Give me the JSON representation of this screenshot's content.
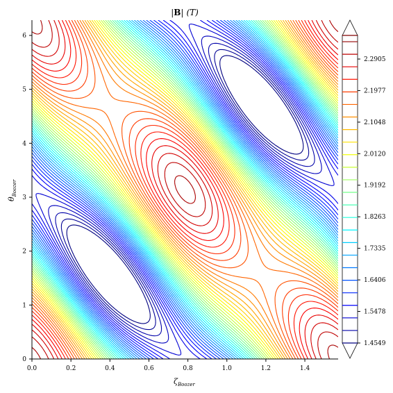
{
  "chart_data": {
    "type": "contour",
    "title": "|B| (T)",
    "title_parts": {
      "open": "|",
      "bold": "B",
      "close": "|",
      "unit": "(T)"
    },
    "xlabel": "ζ",
    "xlabel_sub": "Boozer",
    "ylabel": "θ",
    "ylabel_sub": "Boozer",
    "xlim": [
      0,
      1.5708
    ],
    "ylim": [
      0,
      6.2832
    ],
    "x_ticks": [
      "0.0",
      "0.2",
      "0.4",
      "0.6",
      "0.8",
      "1.0",
      "1.2",
      "1.4"
    ],
    "y_ticks": [
      "0",
      "1",
      "2",
      "3",
      "4",
      "5",
      "6"
    ],
    "field": {
      "mean": 1.87,
      "helical_amplitude": 0.4,
      "helical_m": 1,
      "helical_n": 4,
      "mirror_amplitude": 0.06
    },
    "colorbar": {
      "range": [
        1.4549,
        2.36
      ],
      "extend": "both",
      "tick_labels": [
        "1.4549",
        "1.5478",
        "1.6406",
        "1.7335",
        "1.8263",
        "1.9192",
        "2.0120",
        "2.1048",
        "2.1977",
        "2.2905"
      ],
      "tick_values": [
        1.4549,
        1.5478,
        1.6406,
        1.7335,
        1.8263,
        1.9192,
        2.012,
        2.1048,
        2.1977,
        2.2905
      ]
    },
    "colormap": "jet",
    "grid": false
  }
}
